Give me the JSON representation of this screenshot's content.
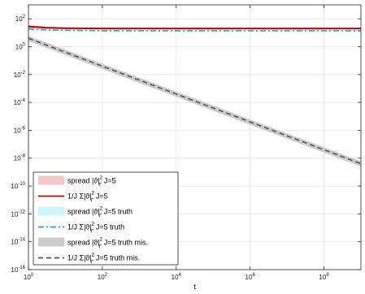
{
  "chart_data": {
    "type": "line",
    "xlabel": "t",
    "ylabel": "",
    "xscale": "log",
    "yscale": "log",
    "xlim": [
      1,
      1000000000
    ],
    "ylim": [
      1e-16,
      1000
    ],
    "grid": true,
    "legend_position": "bottom-left",
    "x_ticks": [
      {
        "base": "10",
        "exp": "0"
      },
      {
        "base": "10",
        "exp": "2"
      },
      {
        "base": "10",
        "exp": "4"
      },
      {
        "base": "10",
        "exp": "6"
      },
      {
        "base": "10",
        "exp": "8"
      }
    ],
    "y_ticks": [
      {
        "base": "10",
        "exp": "2"
      },
      {
        "base": "10",
        "exp": "0"
      },
      {
        "base": "10",
        "exp": "-2"
      },
      {
        "base": "10",
        "exp": "-4"
      },
      {
        "base": "10",
        "exp": "-6"
      },
      {
        "base": "10",
        "exp": "-8"
      },
      {
        "base": "10",
        "exp": "-10"
      },
      {
        "base": "10",
        "exp": "-12"
      },
      {
        "base": "10",
        "exp": "-14"
      },
      {
        "base": "10",
        "exp": "-16"
      }
    ],
    "series": [
      {
        "name": "1/J Σ|ϑ|Γ² J=5",
        "color": "#c00000",
        "dash": "solid",
        "x": [
          1,
          3,
          10,
          100,
          1000,
          10000,
          1000000,
          1000000000
        ],
        "y": [
          28,
          23,
          21,
          20,
          20,
          20,
          20,
          20
        ],
        "band_low": [
          22,
          19,
          18,
          18,
          18,
          18,
          18,
          18
        ],
        "band_high": [
          35,
          28,
          24,
          23,
          23,
          23,
          23,
          23
        ],
        "band_color": "#f7c6c6"
      },
      {
        "name": "1/J Σ|ϑ|Γ² J=5 truth",
        "color": "#1ea0dc",
        "dash": "dashdot",
        "x": [
          1,
          3,
          10,
          100,
          1000,
          10000,
          1000000,
          1000000000
        ],
        "y": [
          19,
          16,
          15,
          14,
          14,
          14,
          14,
          14
        ],
        "band_low": [
          16,
          14,
          13,
          13,
          13,
          13,
          13,
          13
        ],
        "band_high": [
          22,
          18,
          16.5,
          15.5,
          15.5,
          15.5,
          15.5,
          15.5
        ],
        "band_color": "#c8f7f7"
      },
      {
        "name": "1/J Σ|ϑ|Γ² J=5 truth mis.",
        "color": "#555555",
        "dash": "dashed",
        "x": [
          1,
          10,
          100,
          1000,
          10000,
          100000,
          1000000,
          10000000,
          100000000,
          1000000000
        ],
        "y": [
          4,
          0.4,
          0.04,
          0.004,
          0.0004,
          4e-05,
          4e-06,
          4e-07,
          4e-08,
          4e-09
        ],
        "band_low": [
          2.5,
          0.25,
          0.025,
          0.0025,
          0.00025,
          2.5e-05,
          2.5e-06,
          2.5e-07,
          2.5e-08,
          2.5e-09
        ],
        "band_high": [
          6,
          0.6,
          0.06,
          0.006,
          0.0006,
          6e-05,
          6e-06,
          6e-07,
          6e-08,
          6e-09
        ],
        "band_color": "#cccccc"
      }
    ],
    "legend": [
      {
        "kind": "patch",
        "color": "#f7c6c6",
        "pre": "spread |ϑ|",
        "sup": "2",
        "sub": "Γ",
        "post": " J=5"
      },
      {
        "kind": "line",
        "color": "#c00000",
        "dash": "solid",
        "pre": "1/J Σ|ϑ|",
        "sup": "2",
        "sub": "Γ",
        "post": " J=5"
      },
      {
        "kind": "patch",
        "color": "#c8f7f7",
        "pre": "spread |ϑ|",
        "sup": "2",
        "sub": "Γ",
        "post": " J=5 truth"
      },
      {
        "kind": "line",
        "color": "#1ea0dc",
        "dash": "dashdot",
        "pre": "1/J Σ|ϑ|",
        "sup": "2",
        "sub": "Γ",
        "post": " J=5 truth"
      },
      {
        "kind": "patch",
        "color": "#cccccc",
        "pre": "spread |ϑ|",
        "sup": "2",
        "sub": "Γ",
        "post": " J=5 truth mis."
      },
      {
        "kind": "line",
        "color": "#555555",
        "dash": "dashed",
        "pre": "1/J Σ|ϑ|",
        "sup": "2",
        "sub": "Γ",
        "post": " J=5 truth mis."
      }
    ]
  }
}
